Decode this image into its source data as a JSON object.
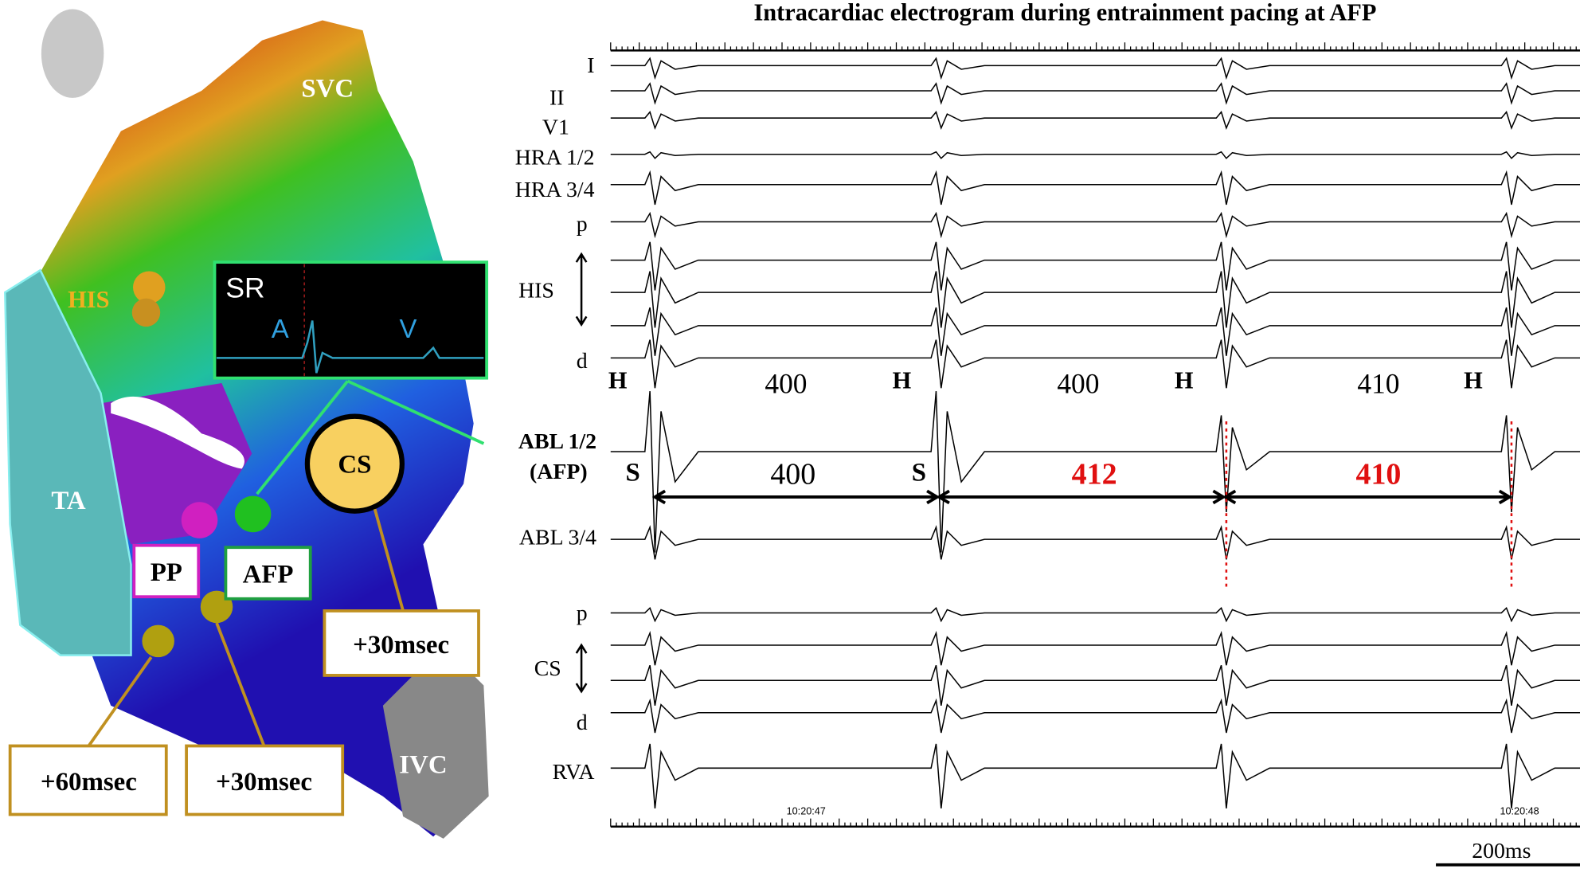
{
  "title": "Intracardiac electrogram during entrainment pacing at AFP",
  "map": {
    "labels": {
      "svc": "SVC",
      "his": "HIS",
      "ta": "TA",
      "cs": "CS",
      "ivc": "IVC",
      "pp": "PP",
      "afp": "AFP"
    },
    "inset": {
      "label": "SR",
      "a": "A",
      "v": "V"
    },
    "callouts": [
      "+30msec",
      "+60msec",
      "+30msec"
    ]
  },
  "egm": {
    "leads": [
      "I",
      "II",
      "V1",
      "HRA 1/2",
      "HRA 3/4",
      "p",
      "HIS",
      "d",
      "ABL 1/2",
      "(AFP)",
      "ABL 3/4",
      "p",
      "CS",
      "d",
      "RVA"
    ],
    "markers": {
      "h": "H",
      "s": "S"
    },
    "his_intervals": [
      400,
      400,
      410
    ],
    "abl_intervals": [
      400,
      412,
      410
    ],
    "timestamps": [
      "10:20:47",
      "10:20:48"
    ],
    "scale_bar": "200ms"
  }
}
